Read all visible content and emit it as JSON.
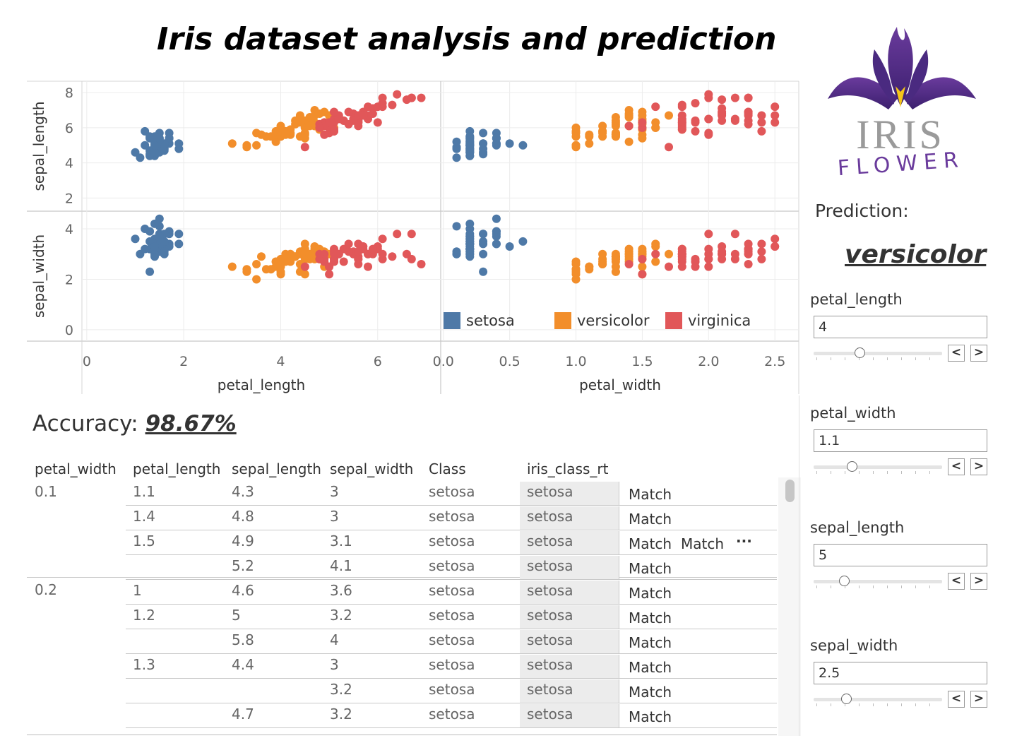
{
  "title": "Iris dataset analysis and prediction",
  "colors": {
    "setosa": "#4e79a7",
    "versicolor": "#f28e2b",
    "virginica": "#e15759"
  },
  "chart_data": {
    "type": "scatter",
    "rows": [
      "sepal_length",
      "sepal_width"
    ],
    "columns": [
      "petal_length",
      "petal_width"
    ],
    "y_ticks": {
      "sepal_length": [
        "2",
        "4",
        "6",
        "8"
      ],
      "sepal_width": [
        "0",
        "2",
        "4"
      ]
    },
    "x_ticks": {
      "petal_length": [
        "0",
        "2",
        "4",
        "6"
      ],
      "petal_width": [
        "0.0",
        "0.5",
        "1.0",
        "1.5",
        "2.0",
        "2.5"
      ]
    },
    "x_ranges": {
      "petal_length": [
        -0.1,
        7.3
      ],
      "petal_width": [
        -0.02,
        2.68
      ]
    },
    "y_ranges": {
      "sepal_length": [
        1.25,
        8.65
      ],
      "sepal_width": [
        -0.45,
        4.7
      ]
    },
    "legend": [
      "setosa",
      "versicolor",
      "virginica"
    ],
    "series": [
      {
        "name": "setosa",
        "points": [
          [
            1.4,
            0.2,
            5.1,
            3.5
          ],
          [
            1.4,
            0.2,
            4.9,
            3.0
          ],
          [
            1.3,
            0.2,
            4.7,
            3.2
          ],
          [
            1.5,
            0.2,
            4.6,
            3.1
          ],
          [
            1.4,
            0.2,
            5.0,
            3.6
          ],
          [
            1.7,
            0.4,
            5.4,
            3.9
          ],
          [
            1.4,
            0.3,
            4.6,
            3.4
          ],
          [
            1.5,
            0.2,
            5.0,
            3.4
          ],
          [
            1.4,
            0.2,
            4.4,
            2.9
          ],
          [
            1.5,
            0.1,
            4.9,
            3.1
          ],
          [
            1.5,
            0.2,
            5.4,
            3.7
          ],
          [
            1.6,
            0.2,
            4.8,
            3.4
          ],
          [
            1.4,
            0.1,
            4.8,
            3.0
          ],
          [
            1.1,
            0.1,
            4.3,
            3.0
          ],
          [
            1.2,
            0.2,
            5.8,
            4.0
          ],
          [
            1.5,
            0.4,
            5.7,
            4.4
          ],
          [
            1.3,
            0.4,
            5.4,
            3.9
          ],
          [
            1.4,
            0.3,
            5.1,
            3.5
          ],
          [
            1.7,
            0.3,
            5.7,
            3.8
          ],
          [
            1.5,
            0.3,
            5.1,
            3.8
          ],
          [
            1.7,
            0.2,
            5.4,
            3.4
          ],
          [
            1.5,
            0.4,
            5.1,
            3.7
          ],
          [
            1.0,
            0.2,
            4.6,
            3.6
          ],
          [
            1.7,
            0.5,
            5.1,
            3.3
          ],
          [
            1.9,
            0.2,
            4.8,
            3.4
          ],
          [
            1.6,
            0.2,
            5.0,
            3.0
          ],
          [
            1.6,
            0.4,
            5.0,
            3.4
          ],
          [
            1.5,
            0.2,
            5.2,
            3.5
          ],
          [
            1.4,
            0.2,
            5.2,
            3.4
          ],
          [
            1.6,
            0.2,
            4.7,
            3.2
          ],
          [
            1.6,
            0.2,
            4.8,
            3.1
          ],
          [
            1.5,
            0.4,
            5.4,
            3.4
          ],
          [
            1.5,
            0.1,
            5.2,
            4.1
          ],
          [
            1.4,
            0.2,
            5.5,
            4.2
          ],
          [
            1.2,
            0.2,
            5.0,
            3.2
          ],
          [
            1.3,
            0.2,
            5.5,
            3.5
          ],
          [
            1.3,
            0.3,
            4.5,
            2.3
          ],
          [
            1.3,
            0.2,
            4.4,
            3.2
          ],
          [
            1.6,
            0.6,
            5.0,
            3.5
          ],
          [
            1.9,
            0.4,
            5.1,
            3.8
          ],
          [
            1.4,
            0.3,
            4.8,
            3.0
          ],
          [
            1.6,
            0.2,
            5.1,
            3.8
          ],
          [
            1.4,
            0.2,
            4.6,
            3.2
          ],
          [
            1.5,
            0.2,
            5.3,
            3.7
          ],
          [
            1.4,
            0.2,
            5.0,
            3.3
          ]
        ]
      },
      {
        "name": "versicolor",
        "points": [
          [
            4.7,
            1.4,
            7.0,
            3.2
          ],
          [
            4.5,
            1.5,
            6.4,
            3.2
          ],
          [
            4.9,
            1.5,
            6.9,
            3.1
          ],
          [
            4.0,
            1.3,
            5.5,
            2.3
          ],
          [
            4.6,
            1.5,
            6.5,
            2.8
          ],
          [
            4.5,
            1.3,
            5.7,
            2.8
          ],
          [
            4.7,
            1.6,
            6.3,
            3.3
          ],
          [
            3.3,
            1.0,
            4.9,
            2.4
          ],
          [
            4.6,
            1.3,
            6.6,
            2.9
          ],
          [
            3.9,
            1.4,
            5.2,
            2.7
          ],
          [
            3.5,
            1.0,
            5.0,
            2.0
          ],
          [
            4.2,
            1.5,
            5.9,
            3.0
          ],
          [
            4.0,
            1.0,
            6.0,
            2.2
          ],
          [
            4.7,
            1.4,
            6.1,
            2.9
          ],
          [
            3.6,
            1.3,
            5.6,
            2.9
          ],
          [
            4.4,
            1.4,
            6.7,
            3.1
          ],
          [
            4.5,
            1.5,
            5.6,
            3.0
          ],
          [
            4.1,
            1.0,
            5.8,
            2.7
          ],
          [
            4.5,
            1.5,
            6.2,
            2.2
          ],
          [
            3.9,
            1.1,
            5.6,
            2.5
          ],
          [
            4.8,
            1.8,
            5.9,
            3.2
          ],
          [
            4.0,
            1.3,
            6.1,
            2.8
          ],
          [
            4.9,
            1.5,
            6.3,
            2.5
          ],
          [
            4.7,
            1.2,
            6.1,
            2.8
          ],
          [
            4.3,
            1.3,
            6.4,
            2.9
          ],
          [
            4.4,
            1.4,
            6.6,
            3.0
          ],
          [
            4.8,
            1.4,
            6.8,
            2.8
          ],
          [
            5.0,
            1.7,
            6.7,
            3.0
          ],
          [
            4.5,
            1.5,
            6.0,
            2.9
          ],
          [
            3.5,
            1.0,
            5.7,
            2.6
          ],
          [
            3.8,
            1.1,
            5.5,
            2.4
          ],
          [
            3.7,
            1.0,
            5.5,
            2.4
          ],
          [
            3.9,
            1.2,
            5.8,
            2.7
          ],
          [
            5.1,
            1.6,
            6.0,
            2.7
          ],
          [
            4.5,
            1.5,
            5.4,
            3.0
          ],
          [
            4.5,
            1.6,
            6.0,
            3.4
          ],
          [
            4.7,
            1.5,
            6.7,
            3.1
          ],
          [
            4.4,
            1.3,
            6.3,
            2.3
          ],
          [
            4.1,
            1.3,
            5.6,
            3.0
          ],
          [
            4.0,
            1.3,
            5.5,
            2.5
          ],
          [
            4.4,
            1.2,
            5.5,
            2.6
          ],
          [
            4.6,
            1.4,
            6.1,
            3.0
          ],
          [
            4.0,
            1.2,
            5.8,
            2.6
          ],
          [
            3.3,
            1.0,
            5.0,
            2.3
          ],
          [
            4.2,
            1.3,
            5.6,
            2.7
          ],
          [
            4.2,
            1.2,
            5.7,
            3.0
          ],
          [
            4.2,
            1.3,
            5.7,
            2.9
          ],
          [
            4.3,
            1.3,
            6.2,
            2.9
          ],
          [
            3.0,
            1.1,
            5.1,
            2.5
          ],
          [
            4.1,
            1.3,
            5.7,
            2.8
          ]
        ]
      },
      {
        "name": "virginica",
        "points": [
          [
            6.0,
            2.5,
            6.3,
            3.3
          ],
          [
            5.1,
            1.9,
            5.8,
            2.7
          ],
          [
            5.9,
            2.1,
            7.1,
            3.0
          ],
          [
            5.6,
            1.8,
            6.3,
            2.9
          ],
          [
            5.8,
            2.2,
            6.5,
            3.0
          ],
          [
            6.6,
            2.1,
            7.6,
            3.0
          ],
          [
            4.5,
            1.7,
            4.9,
            2.5
          ],
          [
            6.3,
            1.8,
            7.3,
            2.9
          ],
          [
            5.8,
            1.8,
            6.7,
            2.5
          ],
          [
            6.1,
            2.5,
            7.2,
            3.6
          ],
          [
            5.1,
            2.0,
            6.5,
            3.2
          ],
          [
            5.3,
            1.9,
            6.4,
            2.7
          ],
          [
            5.5,
            2.1,
            6.8,
            3.0
          ],
          [
            5.0,
            2.0,
            5.7,
            2.5
          ],
          [
            5.1,
            2.4,
            5.8,
            2.8
          ],
          [
            5.3,
            2.3,
            6.4,
            3.2
          ],
          [
            5.5,
            1.8,
            6.5,
            3.0
          ],
          [
            6.7,
            2.2,
            7.7,
            3.8
          ],
          [
            6.9,
            2.3,
            7.7,
            2.6
          ],
          [
            5.0,
            1.5,
            6.0,
            2.2
          ],
          [
            5.7,
            2.3,
            6.9,
            3.2
          ],
          [
            4.9,
            2.0,
            5.6,
            2.8
          ],
          [
            6.7,
            2.0,
            7.7,
            2.8
          ],
          [
            4.9,
            1.8,
            6.3,
            2.7
          ],
          [
            5.7,
            2.1,
            6.7,
            3.3
          ],
          [
            6.0,
            1.8,
            7.2,
            3.2
          ],
          [
            4.8,
            1.8,
            6.2,
            2.8
          ],
          [
            4.9,
            1.8,
            6.1,
            3.0
          ],
          [
            5.6,
            2.1,
            6.4,
            2.8
          ],
          [
            5.8,
            1.6,
            7.2,
            3.0
          ],
          [
            6.1,
            1.9,
            7.4,
            2.8
          ],
          [
            6.4,
            2.0,
            7.9,
            3.8
          ],
          [
            5.6,
            2.2,
            6.4,
            2.8
          ],
          [
            5.1,
            1.5,
            6.3,
            2.8
          ],
          [
            5.6,
            1.4,
            6.1,
            2.6
          ],
          [
            6.1,
            2.3,
            7.7,
            3.0
          ],
          [
            5.6,
            2.4,
            6.3,
            3.4
          ],
          [
            5.5,
            1.8,
            6.4,
            3.1
          ],
          [
            4.8,
            1.8,
            6.0,
            3.0
          ],
          [
            5.4,
            2.1,
            6.9,
            3.1
          ],
          [
            5.6,
            2.4,
            6.7,
            3.1
          ],
          [
            5.1,
            2.3,
            6.9,
            3.1
          ],
          [
            5.9,
            2.3,
            6.8,
            3.2
          ],
          [
            5.7,
            2.5,
            6.7,
            3.3
          ],
          [
            5.2,
            2.3,
            6.7,
            3.0
          ],
          [
            5.0,
            1.9,
            6.3,
            2.5
          ],
          [
            5.2,
            2.0,
            6.5,
            3.0
          ],
          [
            5.4,
            2.3,
            6.2,
            3.4
          ],
          [
            5.1,
            1.8,
            5.9,
            3.0
          ]
        ]
      }
    ],
    "point_format": [
      "petal_length",
      "petal_width",
      "sepal_length",
      "sepal_width"
    ]
  },
  "accuracy": {
    "label": "Accuracy:",
    "value": "98.67%"
  },
  "table": {
    "headers": [
      "petal_width",
      "petal_length",
      "sepal_length",
      "sepal_width",
      "Class",
      "iris_class_rt"
    ],
    "group_pw": [
      "0.1",
      "0.2"
    ],
    "rows": [
      {
        "pl": "1.1",
        "sl": "4.3",
        "sw": "3",
        "cls": "setosa",
        "rt": "setosa",
        "m": "Match"
      },
      {
        "pl": "1.4",
        "sl": "4.8",
        "sw": "3",
        "cls": "setosa",
        "rt": "setosa",
        "m": "Match"
      },
      {
        "pl": "1.5",
        "sl": "4.9",
        "sw": "3.1",
        "cls": "setosa",
        "rt": "setosa",
        "m": "Match",
        "m2": "Match",
        "more": "···"
      },
      {
        "pl": "",
        "sl": "5.2",
        "sw": "4.1",
        "cls": "setosa",
        "rt": "setosa",
        "m": "Match"
      },
      {
        "pl": "1",
        "sl": "4.6",
        "sw": "3.6",
        "cls": "setosa",
        "rt": "setosa",
        "m": "Match"
      },
      {
        "pl": "1.2",
        "sl": "5",
        "sw": "3.2",
        "cls": "setosa",
        "rt": "setosa",
        "m": "Match"
      },
      {
        "pl": "",
        "sl": "5.8",
        "sw": "4",
        "cls": "setosa",
        "rt": "setosa",
        "m": "Match"
      },
      {
        "pl": "1.3",
        "sl": "4.4",
        "sw": "3",
        "cls": "setosa",
        "rt": "setosa",
        "m": "Match"
      },
      {
        "pl": "",
        "sl": "",
        "sw": "3.2",
        "cls": "setosa",
        "rt": "setosa",
        "m": "Match"
      },
      {
        "pl": "",
        "sl": "4.7",
        "sw": "3.2",
        "cls": "setosa",
        "rt": "setosa",
        "m": "Match"
      }
    ]
  },
  "logo": {
    "line1": "IRIS",
    "line2": "FLOWER"
  },
  "prediction": {
    "label": "Prediction:",
    "value": "versicolor"
  },
  "params": [
    {
      "label": "petal_length",
      "value": "4",
      "fraction": 0.36
    },
    {
      "label": "petal_width",
      "value": "1.1",
      "fraction": 0.3
    },
    {
      "label": "sepal_length",
      "value": "5",
      "fraction": 0.24
    },
    {
      "label": "sepal_width",
      "value": "2.5",
      "fraction": 0.26
    }
  ],
  "step": {
    "prev": "<",
    "next": ">"
  }
}
